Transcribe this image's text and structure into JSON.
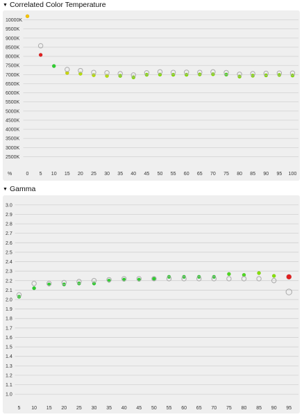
{
  "sections": [
    {
      "title": "Correlated Color Temperature"
    },
    {
      "title": "Gamma"
    }
  ],
  "chart_data": [
    {
      "type": "scatter",
      "title": "Correlated Color Temperature",
      "x_unit_label": "%",
      "x": [
        0,
        5,
        10,
        15,
        20,
        25,
        30,
        35,
        40,
        45,
        50,
        55,
        60,
        65,
        70,
        75,
        80,
        85,
        90,
        95,
        100
      ],
      "ytick_labels": [
        "10000K",
        "9500K",
        "9000K",
        "8500K",
        "8000K",
        "7500K",
        "7000K",
        "6500K",
        "6000K",
        "5500K",
        "5000K",
        "4500K",
        "4000K",
        "3500K",
        "3000K",
        "2500K"
      ],
      "ylim": [
        2250,
        10250
      ],
      "series": [
        {
          "role": "reference",
          "values": [
            null,
            8580,
            null,
            7280,
            7220,
            7120,
            7100,
            7050,
            6980,
            7100,
            7150,
            7120,
            7130,
            7120,
            7150,
            7110,
            7020,
            7050,
            7070,
            7080,
            7080
          ]
        },
        {
          "role": "measured",
          "values": [
            10200,
            8080,
            7470,
            7090,
            7050,
            6970,
            6930,
            6930,
            6850,
            6990,
            7000,
            6990,
            6990,
            7010,
            7020,
            7000,
            6890,
            6940,
            6960,
            6980,
            6950
          ],
          "colors": [
            "#f5c400",
            "#e02020",
            "#2fcf2f",
            "#c8d600",
            "#b7e000",
            "#b7e000",
            "#b7e000",
            "#86e000",
            "#86e000",
            "#86e000",
            "#86e000",
            "#86e000",
            "#86e000",
            "#86e000",
            "#86e000",
            "#4fd820",
            "#86e000",
            "#86e000",
            "#86e000",
            "#86e000",
            "#86e000"
          ]
        }
      ]
    },
    {
      "type": "scatter",
      "title": "Gamma",
      "x": [
        5,
        10,
        15,
        20,
        25,
        30,
        35,
        40,
        45,
        50,
        55,
        60,
        65,
        70,
        75,
        80,
        85,
        90,
        95
      ],
      "ytick_labels": [
        "3.0",
        "2.9",
        "2.8",
        "2.7",
        "2.6",
        "2.5",
        "2.4",
        "2.3",
        "2.2",
        "2.1",
        "2.0",
        "1.9",
        "1.8",
        "1.7",
        "1.6",
        "1.5",
        "1.4",
        "1.3",
        "1.2",
        "1.1",
        "1.0"
      ],
      "ylim": [
        0.95,
        3.05
      ],
      "series": [
        {
          "role": "reference",
          "values": [
            2.05,
            2.17,
            2.17,
            2.18,
            2.19,
            2.2,
            2.21,
            2.22,
            2.22,
            2.22,
            2.22,
            2.22,
            2.22,
            2.22,
            2.22,
            2.22,
            2.22,
            2.2,
            2.08
          ]
        },
        {
          "role": "measured",
          "values": [
            2.03,
            2.12,
            2.16,
            2.16,
            2.17,
            2.17,
            2.2,
            2.21,
            2.21,
            2.22,
            2.24,
            2.24,
            2.24,
            2.24,
            2.27,
            2.26,
            2.28,
            2.25,
            2.24
          ],
          "colors": [
            "#2fcf2f",
            "#2fcf2f",
            "#2fcf2f",
            "#2fcf2f",
            "#2fcf2f",
            "#2fcf2f",
            "#2fcf2f",
            "#2fcf2f",
            "#2fcf2f",
            "#2fcf2f",
            "#2fcf2f",
            "#2fcf2f",
            "#2fcf2f",
            "#2fcf2f",
            "#4fd820",
            "#4fd820",
            "#86e000",
            "#86e000",
            "#e02020"
          ]
        }
      ]
    }
  ]
}
